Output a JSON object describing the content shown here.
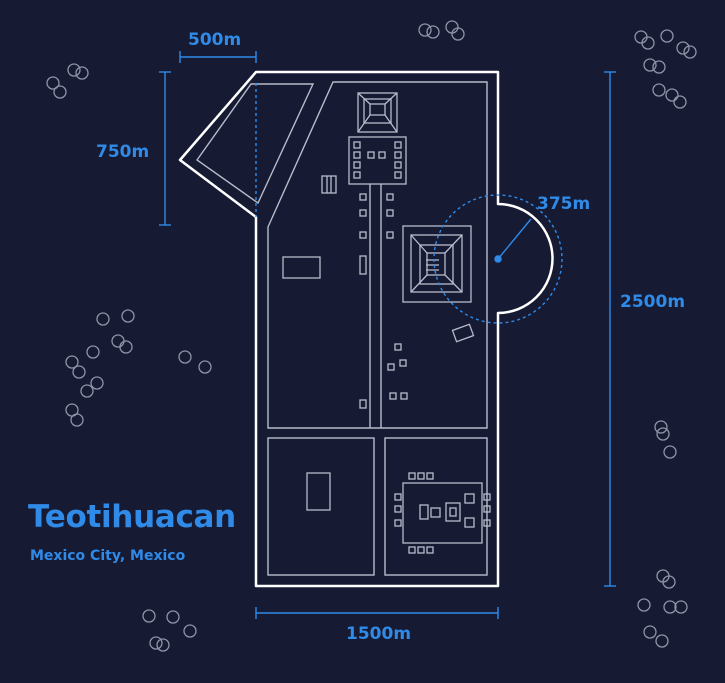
{
  "title": "Teotihuacan",
  "subtitle": "Mexico City, Mexico",
  "dimensions": {
    "top_width": "500m",
    "left_height": "750m",
    "radius": "375m",
    "total_height": "2500m",
    "bottom_width": "1500m"
  },
  "colors": {
    "background": "#161b33",
    "accent": "#2f8ae8",
    "outline": "#ffffff",
    "detail": "#b7bccb"
  },
  "icons": [
    "tree-cluster-icon",
    "pyramid-of-the-sun-icon",
    "pyramid-of-the-moon-icon",
    "citadel-icon"
  ]
}
